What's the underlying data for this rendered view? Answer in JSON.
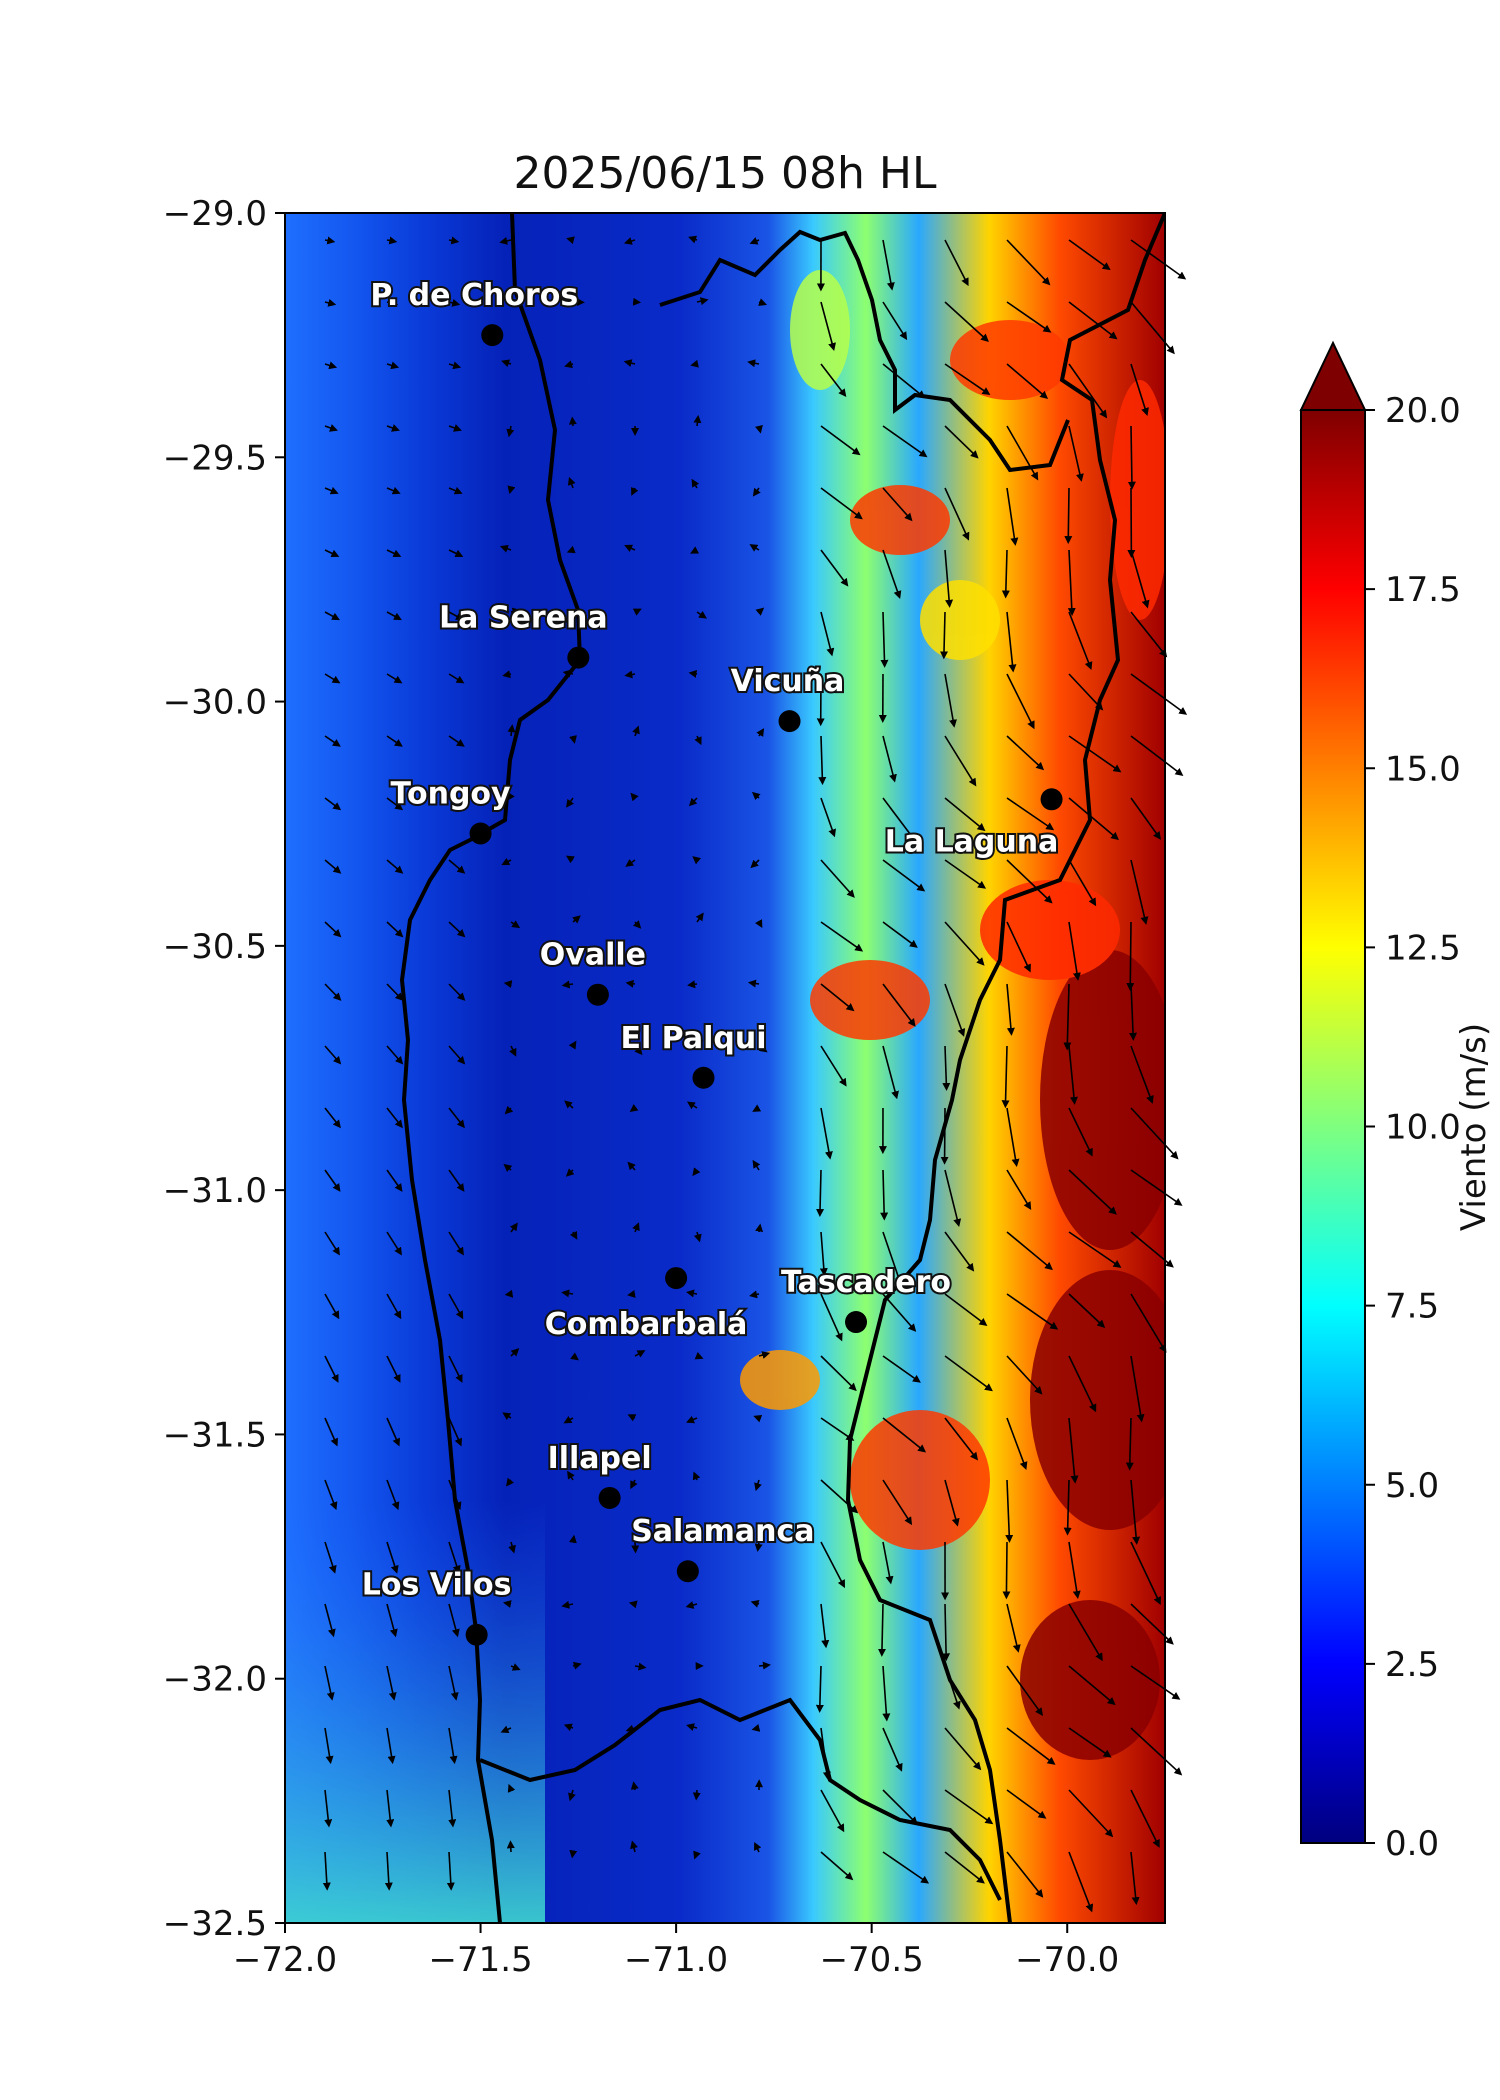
{
  "title": "2025/06/15 08h HL",
  "map": {
    "lon_range": [
      -72.0,
      -69.75
    ],
    "lat_range": [
      -32.5,
      -29.0
    ],
    "x_ticks": [
      {
        "value": -72.0,
        "label": "−72.0"
      },
      {
        "value": -71.5,
        "label": "−71.5"
      },
      {
        "value": -71.0,
        "label": "−71.0"
      },
      {
        "value": -70.5,
        "label": "−70.5"
      },
      {
        "value": -70.0,
        "label": "−70.0"
      }
    ],
    "y_ticks": [
      {
        "value": -29.0,
        "label": "−29.0"
      },
      {
        "value": -29.5,
        "label": "−29.5"
      },
      {
        "value": -30.0,
        "label": "−30.0"
      },
      {
        "value": -30.5,
        "label": "−30.5"
      },
      {
        "value": -31.0,
        "label": "−31.0"
      },
      {
        "value": -31.5,
        "label": "−31.5"
      },
      {
        "value": -32.0,
        "label": "−32.0"
      },
      {
        "value": -32.5,
        "label": "−32.5"
      }
    ]
  },
  "places": [
    {
      "name": "P. de Choros",
      "lon": -71.47,
      "lat": -29.25
    },
    {
      "name": "La Serena",
      "lon": -71.25,
      "lat": -29.91
    },
    {
      "name": "Vicuña",
      "lon": -70.71,
      "lat": -30.04
    },
    {
      "name": "La Laguna",
      "lon": -70.04,
      "lat": -30.2
    },
    {
      "name": "Tongoy",
      "lon": -71.5,
      "lat": -30.27
    },
    {
      "name": "Ovalle",
      "lon": -71.2,
      "lat": -30.6
    },
    {
      "name": "El Palqui",
      "lon": -70.93,
      "lat": -30.77
    },
    {
      "name": "Tascadero",
      "lon": -70.54,
      "lat": -31.27
    },
    {
      "name": "Combarbalá",
      "lon": -71.0,
      "lat": -31.18
    },
    {
      "name": "Illapel",
      "lon": -71.17,
      "lat": -31.63
    },
    {
      "name": "Los Vilos",
      "lon": -71.51,
      "lat": -31.91
    },
    {
      "name": "Salamanca",
      "lon": -70.97,
      "lat": -31.78
    }
  ],
  "colorbar": {
    "label": "Viento (m/s)",
    "min": 0,
    "max": 20,
    "extend": "max",
    "ticks": [
      {
        "value": 0.0,
        "label": "0.0"
      },
      {
        "value": 2.5,
        "label": "2.5"
      },
      {
        "value": 5.0,
        "label": "5.0"
      },
      {
        "value": 7.5,
        "label": "7.5"
      },
      {
        "value": 10.0,
        "label": "10.0"
      },
      {
        "value": 12.5,
        "label": "12.5"
      },
      {
        "value": 15.0,
        "label": "15.0"
      },
      {
        "value": 17.5,
        "label": "17.5"
      },
      {
        "value": 20.0,
        "label": "20.0"
      }
    ],
    "colormap": "jet",
    "stops": [
      "#00007f",
      "#0000ff",
      "#007fff",
      "#00ffff",
      "#7fff7f",
      "#ffff00",
      "#ff7f00",
      "#ff0000",
      "#7f0000"
    ]
  }
}
